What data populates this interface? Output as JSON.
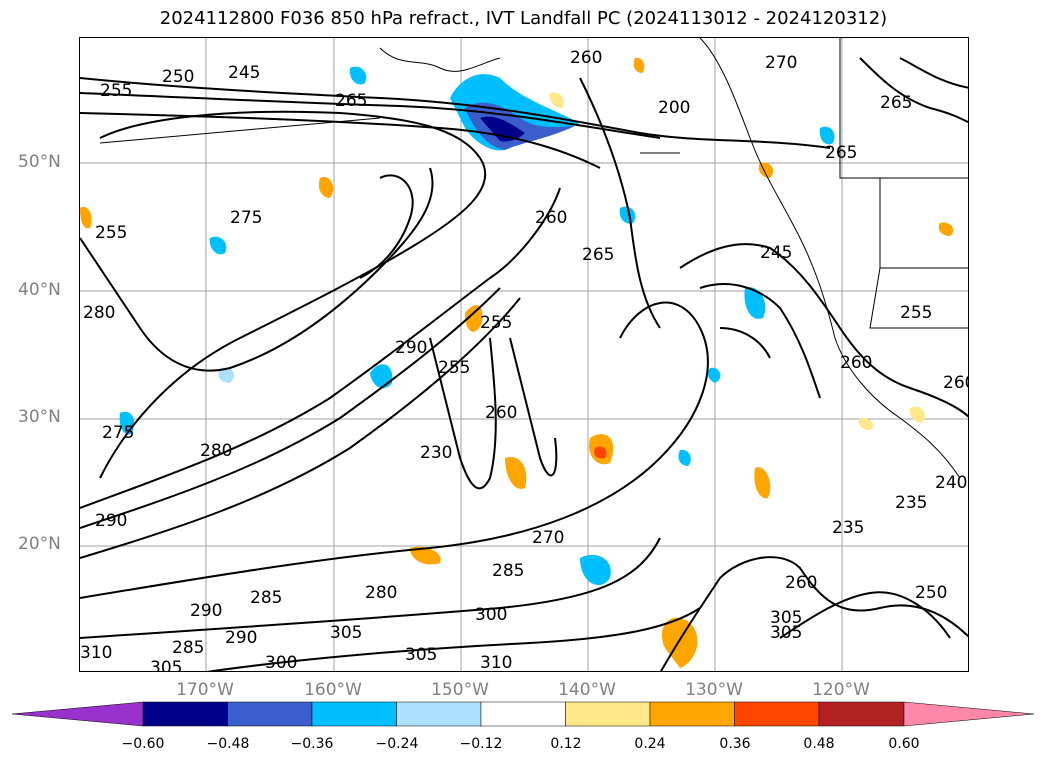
{
  "title": "2024112800 F036 850 hPa refract., IVT Landfall PC (2024113012 - 2024120312)",
  "map": {
    "lat_labels": [
      "50°N",
      "40°N",
      "30°N",
      "20°N"
    ],
    "lon_labels": [
      "170°W",
      "160°W",
      "150°W",
      "140°W",
      "130°W",
      "120°W"
    ],
    "contour_labels": [
      "255",
      "250",
      "245",
      "265",
      "260",
      "270",
      "265",
      "200",
      "265",
      "275",
      "255",
      "260",
      "265",
      "245",
      "280",
      "290",
      "255",
      "255",
      "260",
      "230",
      "255",
      "260",
      "275",
      "280",
      "290",
      "270",
      "285",
      "235",
      "235",
      "240",
      "290",
      "285",
      "280",
      "300",
      "305",
      "305",
      "310",
      "300",
      "305",
      "290",
      "285",
      "305",
      "260",
      "305",
      "310",
      "250",
      "260"
    ]
  },
  "colorbar": {
    "ticks": [
      "−0.60",
      "−0.48",
      "−0.36",
      "−0.24",
      "−0.12",
      "0.12",
      "0.24",
      "0.36",
      "0.48",
      "0.60"
    ],
    "colors": [
      "#9932CC",
      "#00008B",
      "#3A5FCD",
      "#00BFFF",
      "#ADDFFF",
      "#FFFFFF",
      "#FFE88A",
      "#FFA500",
      "#FF4500",
      "#B22222",
      "#FF88AA"
    ]
  }
}
